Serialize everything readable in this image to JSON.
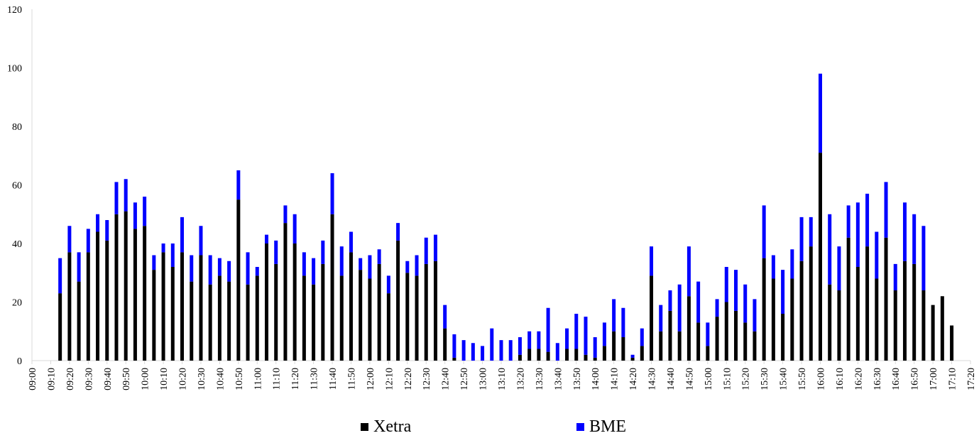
{
  "chart_data": {
    "type": "bar",
    "stacked": true,
    "xlabel": "",
    "ylabel": "",
    "ylim": [
      0,
      120
    ],
    "yticks": [
      "0",
      "20",
      "40",
      "60",
      "80",
      "100",
      "120"
    ],
    "xtick_labels": [
      "09:00",
      "09:10",
      "09:20",
      "09:30",
      "09:40",
      "09:50",
      "10:00",
      "10:10",
      "10:20",
      "10:30",
      "10:40",
      "10:50",
      "11:00",
      "11:10",
      "11:20",
      "11:30",
      "11:40",
      "11:50",
      "12:00",
      "12:10",
      "12:20",
      "12:30",
      "12:40",
      "12:50",
      "13:00",
      "13:10",
      "13:20",
      "13:30",
      "13:40",
      "13:50",
      "14:00",
      "14:10",
      "14:20",
      "14:30",
      "14:40",
      "14:50",
      "15:00",
      "15:10",
      "15:20",
      "15:30",
      "15:40",
      "15:50",
      "16:00",
      "16:10",
      "16:20",
      "16:30",
      "16:40",
      "16:50",
      "17:00",
      "17:10",
      "17:20"
    ],
    "grid": false,
    "legend_position": "bottom",
    "categories": [
      "09:15",
      "09:20",
      "09:25",
      "09:30",
      "09:35",
      "09:40",
      "09:45",
      "09:50",
      "09:55",
      "10:00",
      "10:05",
      "10:10",
      "10:15",
      "10:20",
      "10:25",
      "10:30",
      "10:35",
      "10:40",
      "10:45",
      "10:50",
      "10:55",
      "11:00",
      "11:05",
      "11:10",
      "11:15",
      "11:20",
      "11:25",
      "11:30",
      "11:35",
      "11:40",
      "11:45",
      "11:50",
      "11:55",
      "12:00",
      "12:05",
      "12:10",
      "12:15",
      "12:20",
      "12:25",
      "12:30",
      "12:35",
      "12:40",
      "12:45",
      "12:50",
      "12:55",
      "13:00",
      "13:05",
      "13:10",
      "13:15",
      "13:20",
      "13:25",
      "13:30",
      "13:35",
      "13:40",
      "13:45",
      "13:50",
      "13:55",
      "14:00",
      "14:05",
      "14:10",
      "14:15",
      "14:20",
      "14:25",
      "14:30",
      "14:35",
      "14:40",
      "14:45",
      "14:50",
      "14:55",
      "15:00",
      "15:05",
      "15:10",
      "15:15",
      "15:20",
      "15:25",
      "15:30",
      "15:35",
      "15:40",
      "15:45",
      "15:50",
      "15:55",
      "16:00",
      "16:05",
      "16:10",
      "16:15",
      "16:20",
      "16:25",
      "16:30",
      "16:35",
      "16:40",
      "16:45",
      "16:50",
      "16:55",
      "17:00",
      "17:05",
      "17:10"
    ],
    "series": [
      {
        "name": "Xetra",
        "color": "#000000",
        "values": [
          23,
          37,
          27,
          37,
          44,
          41,
          50,
          51,
          45,
          46,
          31,
          37,
          32,
          37,
          27,
          36,
          26,
          29,
          27,
          55,
          26,
          29,
          40,
          33,
          47,
          40,
          29,
          26,
          33,
          50,
          29,
          37,
          31,
          28,
          33,
          23,
          41,
          30,
          29,
          33,
          34,
          11,
          1,
          0,
          0,
          0,
          0,
          0,
          0,
          2,
          4,
          4,
          3,
          0,
          4,
          4,
          2,
          1,
          5,
          10,
          8,
          1,
          5,
          29,
          10,
          17,
          10,
          22,
          13,
          5,
          15,
          20,
          17,
          13,
          10,
          35,
          28,
          16,
          28,
          34,
          39,
          71,
          26,
          24,
          42,
          32,
          39,
          28,
          42,
          24,
          34,
          33,
          24,
          19,
          22,
          12
        ]
      },
      {
        "name": "BME",
        "color": "#0000ff",
        "values": [
          12,
          9,
          10,
          8,
          6,
          7,
          11,
          11,
          9,
          10,
          5,
          3,
          8,
          12,
          9,
          10,
          10,
          6,
          7,
          10,
          11,
          3,
          3,
          8,
          6,
          10,
          8,
          9,
          8,
          14,
          10,
          7,
          4,
          8,
          5,
          6,
          6,
          4,
          7,
          9,
          9,
          8,
          8,
          7,
          6,
          5,
          11,
          7,
          7,
          6,
          6,
          6,
          15,
          6,
          7,
          12,
          13,
          7,
          8,
          11,
          10,
          1,
          6,
          10,
          9,
          7,
          16,
          17,
          14,
          8,
          6,
          12,
          14,
          13,
          11,
          18,
          8,
          15,
          10,
          15,
          10,
          27,
          24,
          15,
          11,
          22,
          18,
          16,
          19,
          9,
          20,
          17,
          22,
          0,
          0,
          0
        ]
      }
    ]
  }
}
